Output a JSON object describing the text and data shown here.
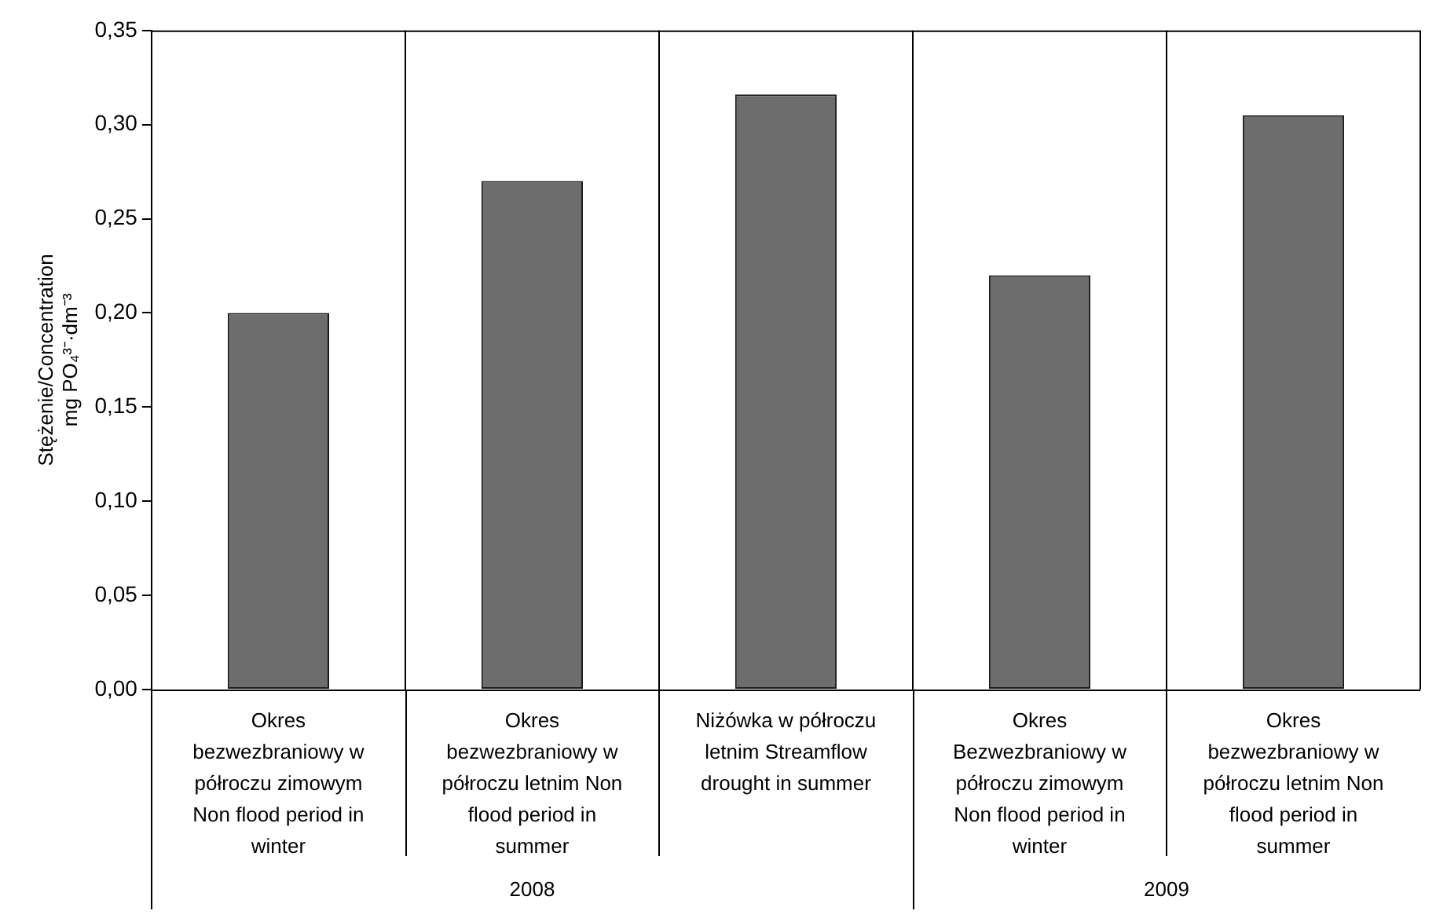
{
  "chart_data": {
    "type": "bar",
    "ylabel": "Stężenie/Concentration mg PO₄³⁻·dm⁻³",
    "categories": [
      "Okres bezwezbraniowy w półroczu zimowym Non flood period in winter",
      "Okres bezwezbraniowy w półroczu letnim Non flood period in summer",
      "Niżówka w półroczu letnim Streamflow drought in summer",
      "Okres Bezwezbraniowy w półroczu zimowym Non flood period in winter",
      "Okres bezwezbraniowy w półroczu letnim Non flood period in summer"
    ],
    "values": [
      0.2,
      0.27,
      0.316,
      0.22,
      0.305
    ],
    "color": "#6d6d6d",
    "ylim": [
      0,
      0.35
    ],
    "yticks": [
      {
        "value": 0,
        "label": "0,00"
      },
      {
        "value": 0.05,
        "label": "0,05"
      },
      {
        "value": 0.1,
        "label": "0,10"
      },
      {
        "value": 0.15,
        "label": "0,15"
      },
      {
        "value": 0.2,
        "label": "0,20"
      },
      {
        "value": 0.25,
        "label": "0,25"
      },
      {
        "value": 0.3,
        "label": "0,30"
      },
      {
        "value": 0.35,
        "label": "0,35"
      }
    ],
    "grid": "x",
    "legend": false,
    "annotations": [
      "2008",
      "2009"
    ]
  }
}
